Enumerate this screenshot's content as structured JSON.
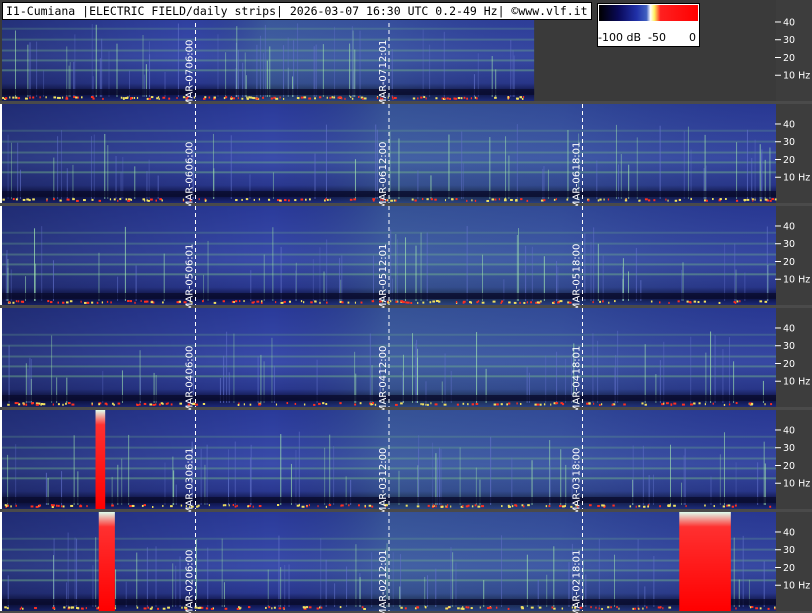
{
  "title": "I1-Cumiana |ELECTRIC FIELD/daily strips| 2026-03-07 16:30 UTC 0.2-49 Hz| ©www.vlf.it",
  "scale": {
    "labels": [
      "-100 dB",
      "-50",
      "0"
    ]
  },
  "chart_data": {
    "type": "heatmap",
    "station": "I1-Cumiana",
    "measurement": "ELECTRIC FIELD/daily strips",
    "timestamp": "2026-03-07 16:30 UTC",
    "frequency_range": "0.2-49 Hz",
    "credit": "©www.vlf.it",
    "color_scale": {
      "min_db": -100,
      "mid_db": -50,
      "max_db": 0
    },
    "colors": {
      "background_low": "#1a1a6e",
      "mid": "#3a4aa8",
      "high": "#7cc080",
      "peak": "#ff2020"
    },
    "y_ticks": [
      "40",
      "30",
      "20",
      "10 Hz"
    ],
    "y_tick_values_hz": [
      40,
      30,
      20,
      10
    ],
    "x_ticks_hours": [
      6,
      12,
      18
    ],
    "strips": [
      {
        "date_label": "MAR-07",
        "time_labels": [
          "06:00",
          "12:01"
        ],
        "partial": true
      },
      {
        "date_label": "MAR-06",
        "time_labels": [
          "06:00",
          "12:00",
          "18:01"
        ],
        "partial": false
      },
      {
        "date_label": "MAR-05",
        "time_labels": [
          "06:01",
          "12:01",
          "18:00"
        ],
        "partial": false
      },
      {
        "date_label": "MAR-04",
        "time_labels": [
          "06:00",
          "12:00",
          "18:01"
        ],
        "partial": false
      },
      {
        "date_label": "MAR-03",
        "time_labels": [
          "06:01",
          "12:00",
          "18:00"
        ],
        "partial": false
      },
      {
        "date_label": "MAR-02",
        "time_labels": [
          "06:00",
          "12:01",
          "18:01"
        ],
        "partial": false
      }
    ],
    "red_bursts": [
      {
        "strip": "MAR-03",
        "start_hour": 2.9,
        "end_hour": 3.2
      },
      {
        "strip": "MAR-02",
        "start_hour": 3.0,
        "end_hour": 3.5
      },
      {
        "strip": "MAR-02",
        "start_hour": 21.0,
        "end_hour": 22.6
      }
    ],
    "partial_end_hour": 16.5
  }
}
